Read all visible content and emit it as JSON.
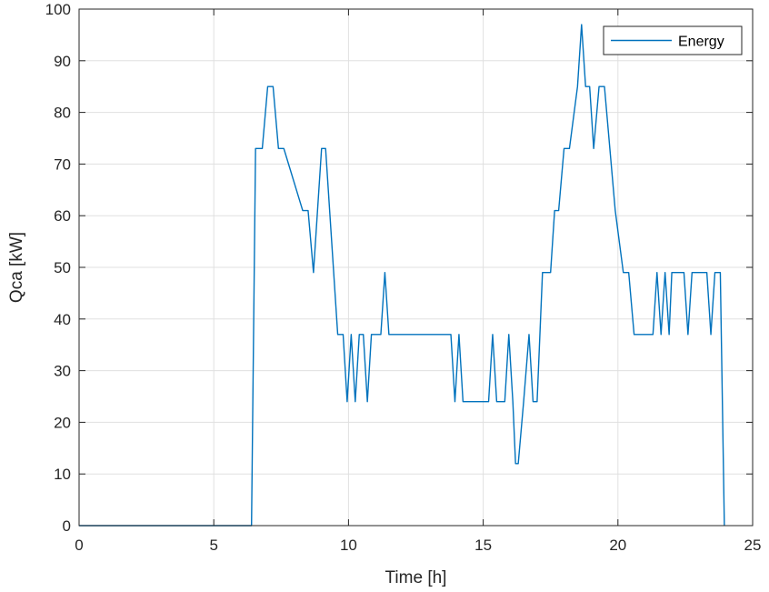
{
  "chart_data": {
    "type": "line",
    "title": "",
    "xlabel": "Time [h]",
    "ylabel": "Qca [kW]",
    "xlim": [
      0,
      25
    ],
    "ylim": [
      0,
      100
    ],
    "xticks": [
      0,
      5,
      10,
      15,
      20,
      25
    ],
    "yticks": [
      0,
      10,
      20,
      30,
      40,
      50,
      60,
      70,
      80,
      90,
      100
    ],
    "grid": true,
    "legend_position": "top-right",
    "series": [
      {
        "name": "Energy",
        "color": "#0072bd",
        "x": [
          0,
          6.4,
          6.55,
          6.8,
          7.0,
          7.2,
          7.4,
          7.6,
          8.3,
          8.5,
          8.7,
          8.85,
          9.0,
          9.15,
          9.3,
          9.6,
          9.8,
          9.95,
          10.1,
          10.25,
          10.4,
          10.55,
          10.7,
          10.85,
          11.2,
          11.35,
          11.5,
          13.8,
          13.95,
          14.1,
          14.25,
          14.4,
          15.2,
          15.35,
          15.5,
          15.8,
          15.95,
          16.1,
          16.2,
          16.3,
          16.5,
          16.7,
          16.85,
          17.0,
          17.2,
          17.5,
          17.65,
          17.8,
          18.0,
          18.2,
          18.5,
          18.65,
          18.8,
          18.95,
          19.1,
          19.3,
          19.5,
          19.7,
          19.9,
          20.2,
          20.4,
          20.6,
          20.75,
          21.3,
          21.45,
          21.6,
          21.75,
          21.9,
          22.0,
          22.15,
          22.45,
          22.6,
          22.75,
          22.9,
          23.3,
          23.45,
          23.6,
          23.75,
          23.8,
          23.95
        ],
        "y": [
          0,
          0,
          73,
          73,
          85,
          85,
          73,
          73,
          61,
          61,
          49,
          61,
          73,
          73,
          61,
          37,
          37,
          24,
          37,
          24,
          37,
          37,
          24,
          37,
          37,
          49,
          37,
          37,
          24,
          37,
          24,
          24,
          24,
          37,
          24,
          24,
          37,
          24,
          12,
          12,
          24,
          37,
          24,
          24,
          49,
          49,
          61,
          61,
          73,
          73,
          85,
          97,
          85,
          85,
          73,
          85,
          85,
          73,
          61,
          49,
          49,
          37,
          37,
          37,
          49,
          37,
          49,
          37,
          49,
          49,
          49,
          37,
          49,
          49,
          49,
          37,
          49,
          49,
          49,
          0
        ]
      }
    ]
  }
}
